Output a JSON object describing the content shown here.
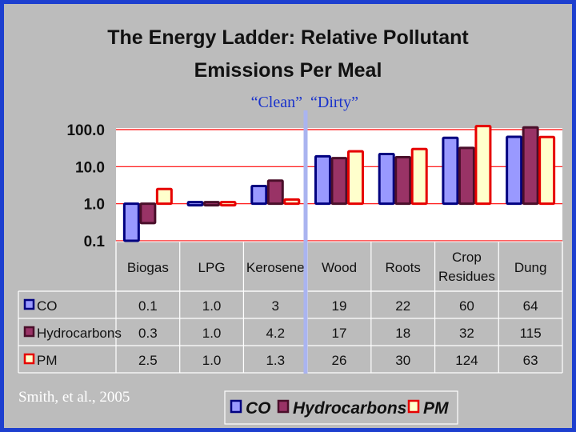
{
  "colors": {
    "CO": "#9999ff",
    "CO_border": "#000080",
    "Hydrocarbons": "#993366",
    "Hydrocarbons_border": "#4a0f2a",
    "PM": "#ffffcc",
    "PM_border": "#e60000",
    "frame": "#1d3fcf",
    "divider": "#aab4f0"
  },
  "annotations": {
    "clean": "“Clean”",
    "dirty": "“Dirty”"
  },
  "credit": "Smith, et al., 2005",
  "chart_data": {
    "type": "bar",
    "title_lines": [
      "The Energy Ladder: Relative Pollutant",
      "Emissions Per Meal"
    ],
    "y_scale": "log",
    "ylim": [
      0.1,
      100
    ],
    "y_ticks": [
      "100.0",
      "10.0",
      "1.0",
      "0.1"
    ],
    "y_tick_values": [
      100,
      10,
      1,
      0.1
    ],
    "bar_baseline": 1,
    "grid": true,
    "categories": [
      "Biogas",
      "LPG",
      "Kerosene",
      "Wood",
      "Roots",
      "Crop Residues",
      "Dung"
    ],
    "category_lines": [
      [
        "Biogas"
      ],
      [
        "LPG"
      ],
      [
        "Kerosene"
      ],
      [
        "Wood"
      ],
      [
        "Roots"
      ],
      [
        "Crop",
        "Residues"
      ],
      [
        "Dung"
      ]
    ],
    "series": [
      {
        "name": "CO",
        "key": "CO",
        "values": [
          0.1,
          1.0,
          3,
          19,
          22,
          60,
          64
        ],
        "labels": [
          "0.1",
          "1.0",
          "3",
          "19",
          "22",
          "60",
          "64"
        ]
      },
      {
        "name": "Hydrocarbons",
        "key": "Hydrocarbons",
        "values": [
          0.3,
          1.0,
          4.2,
          17,
          18,
          32,
          115
        ],
        "labels": [
          "0.3",
          "1.0",
          "4.2",
          "17",
          "18",
          "32",
          "115"
        ]
      },
      {
        "name": "PM",
        "key": "PM",
        "values": [
          2.5,
          1.0,
          1.3,
          26,
          30,
          124,
          63
        ],
        "labels": [
          "2.5",
          "1.0",
          "1.3",
          "26",
          "30",
          "124",
          "63"
        ]
      }
    ],
    "legend": {
      "placement": "bottom",
      "entries": [
        "CO",
        "Hydrocarbons",
        "PM"
      ]
    },
    "data_table": true
  }
}
